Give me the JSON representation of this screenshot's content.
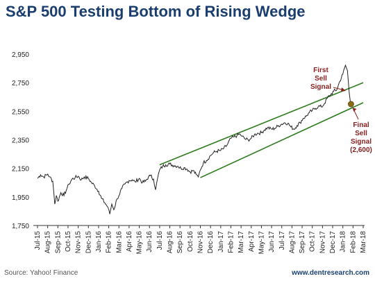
{
  "chart_data": {
    "type": "line",
    "title": "S&P 500 Testing Bottom of Rising Wedge",
    "source": "Source: Yahoo! Finance",
    "website": "www.dentresearch.com",
    "ylim": [
      1750,
      2950
    ],
    "y_ticks": [
      1750,
      1950,
      2150,
      2350,
      2550,
      2750,
      2950
    ],
    "y_tick_labels": [
      "1,750",
      "1,950",
      "2,150",
      "2,350",
      "2,550",
      "2,750",
      "2,950"
    ],
    "x_ticks": [
      "Jul-15",
      "Aug-15",
      "Sep-15",
      "Oct-15",
      "Nov-15",
      "Dec-15",
      "Jan-16",
      "Feb-16",
      "Mar-16",
      "Apr-16",
      "May-16",
      "Jun-16",
      "Jul-16",
      "Aug-16",
      "Sep-16",
      "Oct-16",
      "Nov-16",
      "Dec-16",
      "Jan-17",
      "Feb-17",
      "Mar-17",
      "Apr-17",
      "May-17",
      "Jun-17",
      "Jul-17",
      "Aug-17",
      "Sep-17",
      "Oct-17",
      "Nov-17",
      "Dec-17",
      "Jan-18",
      "Feb-18",
      "Mar-18"
    ],
    "grid": false,
    "line_color": "#222222",
    "wedge_color": "#2e7d1e",
    "dot_color": "#8b6914",
    "annotation_color": "#8b2020",
    "title_color": "#1a3e6e",
    "series": [
      {
        "values": [
          [
            0,
            2080
          ],
          [
            0.3,
            2105
          ],
          [
            0.6,
            2090
          ],
          [
            1.0,
            2110
          ],
          [
            1.2,
            2090
          ],
          [
            1.5,
            2060
          ],
          [
            1.7,
            1900
          ],
          [
            1.85,
            1960
          ],
          [
            2.0,
            1920
          ],
          [
            2.3,
            1980
          ],
          [
            2.6,
            1960
          ],
          [
            2.9,
            2010
          ],
          [
            3.1,
            2040
          ],
          [
            3.4,
            2075
          ],
          [
            3.7,
            2085
          ],
          [
            4.0,
            2095
          ],
          [
            4.3,
            2070
          ],
          [
            4.6,
            2090
          ],
          [
            5.0,
            2080
          ],
          [
            5.3,
            2050
          ],
          [
            5.6,
            2030
          ],
          [
            6.0,
            1990
          ],
          [
            6.3,
            1940
          ],
          [
            6.6,
            1910
          ],
          [
            6.9,
            1880
          ],
          [
            7.1,
            1830
          ],
          [
            7.3,
            1900
          ],
          [
            7.5,
            1860
          ],
          [
            7.8,
            1935
          ],
          [
            8.0,
            1960
          ],
          [
            8.3,
            2010
          ],
          [
            8.6,
            2040
          ],
          [
            9.0,
            2065
          ],
          [
            9.3,
            2070
          ],
          [
            9.6,
            2055
          ],
          [
            10.0,
            2080
          ],
          [
            10.3,
            2050
          ],
          [
            10.6,
            2060
          ],
          [
            10.9,
            2090
          ],
          [
            11.1,
            2100
          ],
          [
            11.4,
            2075
          ],
          [
            11.6,
            2000
          ],
          [
            11.8,
            2080
          ],
          [
            12.0,
            2140
          ],
          [
            12.3,
            2165
          ],
          [
            12.6,
            2175
          ],
          [
            13.0,
            2180
          ],
          [
            13.4,
            2170
          ],
          [
            13.8,
            2165
          ],
          [
            14.1,
            2150
          ],
          [
            14.4,
            2155
          ],
          [
            14.7,
            2145
          ],
          [
            15.0,
            2125
          ],
          [
            15.3,
            2135
          ],
          [
            15.6,
            2105
          ],
          [
            15.8,
            2090
          ],
          [
            16.0,
            2140
          ],
          [
            16.3,
            2190
          ],
          [
            16.6,
            2205
          ],
          [
            17.0,
            2240
          ],
          [
            17.3,
            2260
          ],
          [
            17.6,
            2270
          ],
          [
            18.0,
            2275
          ],
          [
            18.3,
            2290
          ],
          [
            18.6,
            2310
          ],
          [
            19.0,
            2360
          ],
          [
            19.3,
            2370
          ],
          [
            19.6,
            2380
          ],
          [
            19.9,
            2390
          ],
          [
            20.1,
            2375
          ],
          [
            20.4,
            2355
          ],
          [
            20.7,
            2350
          ],
          [
            21.0,
            2360
          ],
          [
            21.3,
            2385
          ],
          [
            21.6,
            2395
          ],
          [
            22.0,
            2400
          ],
          [
            22.3,
            2420
          ],
          [
            22.6,
            2435
          ],
          [
            23.0,
            2425
          ],
          [
            23.3,
            2430
          ],
          [
            23.6,
            2445
          ],
          [
            24.0,
            2460
          ],
          [
            24.3,
            2470
          ],
          [
            24.6,
            2465
          ],
          [
            24.9,
            2440
          ],
          [
            25.2,
            2425
          ],
          [
            25.5,
            2450
          ],
          [
            25.8,
            2470
          ],
          [
            26.1,
            2500
          ],
          [
            26.4,
            2515
          ],
          [
            26.7,
            2540
          ],
          [
            27.0,
            2555
          ],
          [
            27.3,
            2570
          ],
          [
            27.6,
            2585
          ],
          [
            27.9,
            2580
          ],
          [
            28.2,
            2605
          ],
          [
            28.5,
            2645
          ],
          [
            28.8,
            2665
          ],
          [
            29.1,
            2690
          ],
          [
            29.4,
            2700
          ],
          [
            29.7,
            2760
          ],
          [
            30.0,
            2810
          ],
          [
            30.25,
            2872
          ],
          [
            30.45,
            2835
          ],
          [
            30.6,
            2700
          ],
          [
            30.7,
            2640
          ],
          [
            30.8,
            2590
          ]
        ]
      }
    ],
    "trendlines": [
      {
        "name": "upper",
        "points": [
          [
            12.0,
            2175
          ],
          [
            32.0,
            2750
          ]
        ]
      },
      {
        "name": "lower",
        "points": [
          [
            16.0,
            2085
          ],
          [
            32.0,
            2610
          ]
        ]
      }
    ],
    "marker": {
      "x": 30.8,
      "y": 2600
    },
    "annotations": {
      "first_sell": [
        "First",
        "Sell",
        "Signal"
      ],
      "final_sell": [
        "Final",
        "Sell",
        "Signal",
        "(2,600)"
      ]
    }
  }
}
